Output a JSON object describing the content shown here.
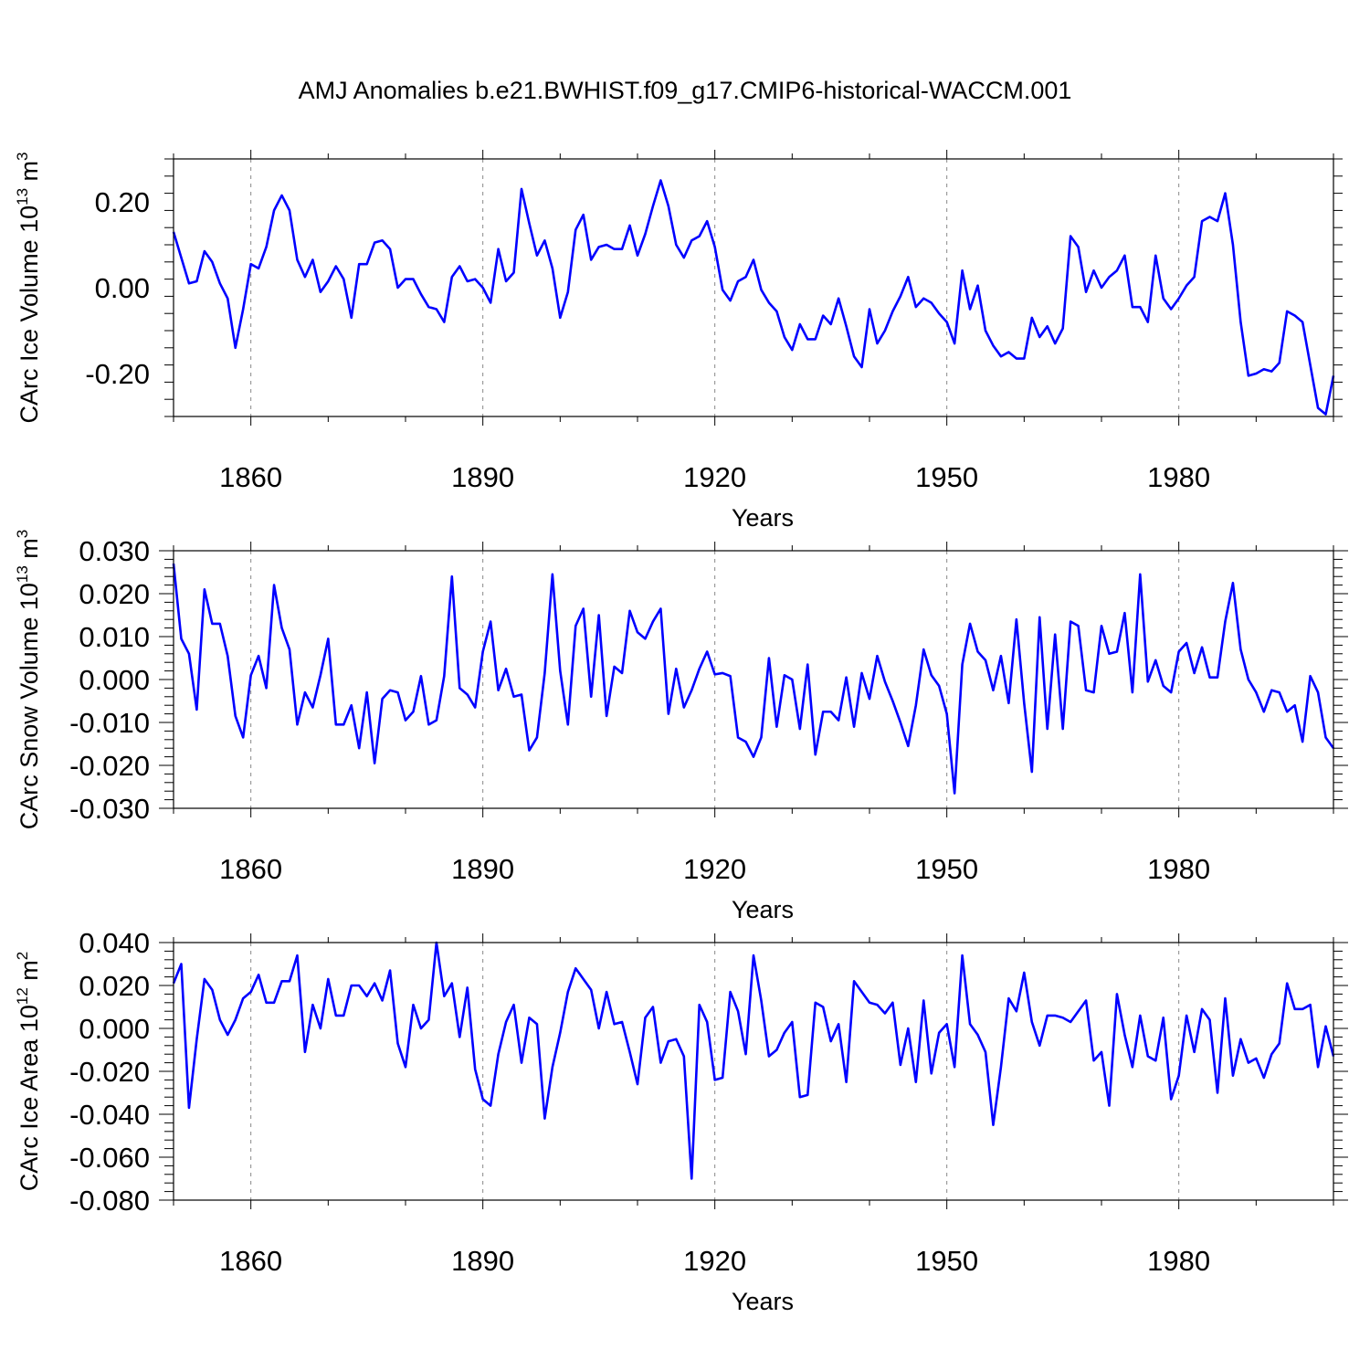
{
  "title": "AMJ Anomalies b.e21.BWHIST.f09_g17.CMIP6-historical-WACCM.001",
  "line_color": "#0000ff",
  "chart_data": [
    {
      "type": "line",
      "xlabel": "Years",
      "ylabel": "CArc Ice Volume 10",
      "ylabel_sup": "13",
      "ylabel_unit": " m",
      "ylabel_unit_sup": "3",
      "xlim": [
        1850,
        2000
      ],
      "ylim": [
        -0.3,
        0.3
      ],
      "yticks": [
        -0.2,
        0.0,
        0.2
      ],
      "ytick_labels": [
        "-0.20",
        "0.00",
        "0.20"
      ],
      "xticks": [
        1860,
        1890,
        1920,
        1950,
        1980
      ],
      "xtick_labels": [
        "1860",
        "1890",
        "1920",
        "1950",
        "1980"
      ],
      "x_start": 1850,
      "values": [
        0.13,
        0.07,
        0.01,
        0.015,
        0.085,
        0.06,
        0.01,
        -0.025,
        -0.14,
        -0.05,
        0.055,
        0.045,
        0.095,
        0.18,
        0.215,
        0.18,
        0.065,
        0.025,
        0.065,
        -0.01,
        0.015,
        0.05,
        0.02,
        -0.07,
        0.055,
        0.055,
        0.105,
        0.11,
        0.09,
        0.0,
        0.02,
        0.02,
        -0.015,
        -0.045,
        -0.05,
        -0.08,
        0.025,
        0.05,
        0.015,
        0.02,
        0.0,
        -0.035,
        0.09,
        0.015,
        0.035,
        0.23,
        0.15,
        0.075,
        0.11,
        0.045,
        -0.07,
        -0.01,
        0.135,
        0.17,
        0.065,
        0.095,
        0.1,
        0.09,
        0.09,
        0.145,
        0.075,
        0.125,
        0.19,
        0.25,
        0.19,
        0.1,
        0.07,
        0.11,
        0.12,
        0.155,
        0.095,
        -0.005,
        -0.03,
        0.015,
        0.025,
        0.065,
        -0.005,
        -0.035,
        -0.055,
        -0.115,
        -0.145,
        -0.085,
        -0.12,
        -0.12,
        -0.065,
        -0.085,
        -0.025,
        -0.09,
        -0.16,
        -0.185,
        -0.05,
        -0.13,
        -0.1,
        -0.055,
        -0.02,
        0.025,
        -0.045,
        -0.025,
        -0.035,
        -0.06,
        -0.08,
        -0.13,
        0.04,
        -0.05,
        0.005,
        -0.1,
        -0.135,
        -0.16,
        -0.15,
        -0.165,
        -0.165,
        -0.07,
        -0.115,
        -0.09,
        -0.13,
        -0.095,
        0.12,
        0.095,
        -0.01,
        0.04,
        0.0,
        0.025,
        0.04,
        0.075,
        -0.045,
        -0.045,
        -0.08,
        0.075,
        -0.025,
        -0.05,
        -0.025,
        0.005,
        0.025,
        0.155,
        0.165,
        0.155,
        0.22,
        0.1,
        -0.08,
        -0.205,
        -0.2,
        -0.19,
        -0.195,
        -0.175,
        -0.055,
        -0.065,
        -0.08,
        -0.18,
        -0.28,
        -0.295,
        -0.205
      ]
    },
    {
      "type": "line",
      "xlabel": "Years",
      "ylabel": "CArc Snow Volume 10",
      "ylabel_sup": "13",
      "ylabel_unit": " m",
      "ylabel_unit_sup": "3",
      "xlim": [
        1850,
        2000
      ],
      "ylim": [
        -0.03,
        0.03
      ],
      "yticks": [
        -0.03,
        -0.02,
        -0.01,
        0.0,
        0.01,
        0.02,
        0.03
      ],
      "ytick_labels": [
        "-0.030",
        "-0.020",
        "-0.010",
        "0.000",
        "0.010",
        "0.020",
        "0.030"
      ],
      "xticks": [
        1860,
        1890,
        1920,
        1950,
        1980
      ],
      "xtick_labels": [
        "1860",
        "1890",
        "1920",
        "1950",
        "1980"
      ],
      "x_start": 1850,
      "values": [
        0.027,
        0.0095,
        0.006,
        -0.007,
        0.021,
        0.013,
        0.013,
        0.0055,
        -0.0085,
        -0.0135,
        0.001,
        0.0055,
        -0.002,
        0.022,
        0.012,
        0.007,
        -0.0105,
        -0.003,
        -0.0065,
        0.001,
        0.0095,
        -0.0105,
        -0.0105,
        -0.006,
        -0.016,
        -0.003,
        -0.0195,
        -0.0045,
        -0.0025,
        -0.003,
        -0.0095,
        -0.0075,
        0.0008,
        -0.0105,
        -0.0095,
        0.0008,
        0.024,
        -0.002,
        -0.0035,
        -0.0065,
        0.0065,
        0.0135,
        -0.0025,
        0.0025,
        -0.004,
        -0.0035,
        -0.0165,
        -0.0135,
        0.0015,
        0.0245,
        0.002,
        -0.0105,
        0.0125,
        0.0165,
        -0.004,
        0.015,
        -0.0085,
        0.003,
        0.0015,
        0.016,
        0.011,
        0.0095,
        0.0135,
        0.0165,
        -0.008,
        0.0025,
        -0.0065,
        -0.0025,
        0.0025,
        0.0065,
        0.0012,
        0.0015,
        0.0008,
        -0.0135,
        -0.0145,
        -0.018,
        -0.0135,
        0.005,
        -0.011,
        0.001,
        0.0,
        -0.0115,
        0.0035,
        -0.0175,
        -0.0075,
        -0.0075,
        -0.0095,
        0.0005,
        -0.011,
        0.0015,
        -0.0045,
        0.0055,
        -0.0005,
        -0.005,
        -0.01,
        -0.0155,
        -0.006,
        0.007,
        0.001,
        -0.0015,
        -0.008,
        -0.0265,
        0.0035,
        0.013,
        0.0065,
        0.0045,
        -0.0025,
        0.0055,
        -0.0055,
        0.014,
        -0.0055,
        -0.0215,
        0.0145,
        -0.0115,
        0.0105,
        -0.0115,
        0.0135,
        0.0125,
        -0.0025,
        -0.003,
        0.0125,
        0.006,
        0.0065,
        0.0155,
        -0.003,
        0.0245,
        -0.0005,
        0.0045,
        -0.0015,
        -0.003,
        0.0065,
        0.0085,
        0.0015,
        0.0075,
        0.0005,
        0.0005,
        0.0135,
        0.0225,
        0.007,
        0.0,
        -0.003,
        -0.0075,
        -0.0025,
        -0.003,
        -0.0075,
        -0.006,
        -0.0145,
        0.0008,
        -0.003,
        -0.0135,
        -0.016
      ]
    },
    {
      "type": "line",
      "xlabel": "Years",
      "ylabel": "CArc Ice Area 10",
      "ylabel_sup": "12",
      "ylabel_unit": " m",
      "ylabel_unit_sup": "2",
      "xlim": [
        1850,
        2000
      ],
      "ylim": [
        -0.08,
        0.04
      ],
      "yticks": [
        -0.08,
        -0.06,
        -0.04,
        -0.02,
        0.0,
        0.02,
        0.04
      ],
      "ytick_labels": [
        "-0.080",
        "-0.060",
        "-0.040",
        "-0.020",
        "0.000",
        "0.020",
        "0.040"
      ],
      "xticks": [
        1860,
        1890,
        1920,
        1950,
        1980
      ],
      "xtick_labels": [
        "1860",
        "1890",
        "1920",
        "1950",
        "1980"
      ],
      "x_start": 1850,
      "values": [
        0.021,
        0.03,
        -0.037,
        -0.005,
        0.023,
        0.018,
        0.004,
        -0.003,
        0.004,
        0.014,
        0.017,
        0.025,
        0.012,
        0.012,
        0.022,
        0.022,
        0.034,
        -0.011,
        0.011,
        0.0,
        0.023,
        0.006,
        0.006,
        0.02,
        0.02,
        0.015,
        0.021,
        0.013,
        0.027,
        -0.007,
        -0.018,
        0.011,
        0.0,
        0.004,
        0.04,
        0.015,
        0.021,
        -0.004,
        0.019,
        -0.019,
        -0.033,
        -0.036,
        -0.012,
        0.003,
        0.011,
        -0.016,
        0.005,
        0.002,
        -0.042,
        -0.018,
        -0.002,
        0.017,
        0.028,
        0.023,
        0.018,
        0.0,
        0.017,
        0.002,
        0.003,
        -0.011,
        -0.026,
        0.005,
        0.01,
        -0.016,
        -0.006,
        -0.005,
        -0.013,
        -0.07,
        0.011,
        0.003,
        -0.024,
        -0.023,
        0.017,
        0.008,
        -0.012,
        0.034,
        0.013,
        -0.013,
        -0.01,
        -0.002,
        0.003,
        -0.032,
        -0.031,
        0.012,
        0.01,
        -0.006,
        0.002,
        -0.025,
        0.022,
        0.017,
        0.012,
        0.011,
        0.007,
        0.012,
        -0.017,
        0.0,
        -0.025,
        0.013,
        -0.021,
        -0.002,
        0.002,
        -0.018,
        0.034,
        0.002,
        -0.003,
        -0.011,
        -0.045,
        -0.018,
        0.014,
        0.008,
        0.026,
        0.003,
        -0.008,
        0.006,
        0.006,
        0.005,
        0.003,
        0.008,
        0.013,
        -0.015,
        -0.011,
        -0.036,
        0.016,
        -0.003,
        -0.018,
        0.006,
        -0.013,
        -0.015,
        0.005,
        -0.033,
        -0.022,
        0.006,
        -0.011,
        0.009,
        0.004,
        -0.03,
        0.014,
        -0.022,
        -0.005,
        -0.016,
        -0.014,
        -0.023,
        -0.012,
        -0.007,
        0.021,
        0.009,
        0.009,
        0.011,
        -0.018,
        0.001,
        -0.013
      ]
    }
  ]
}
